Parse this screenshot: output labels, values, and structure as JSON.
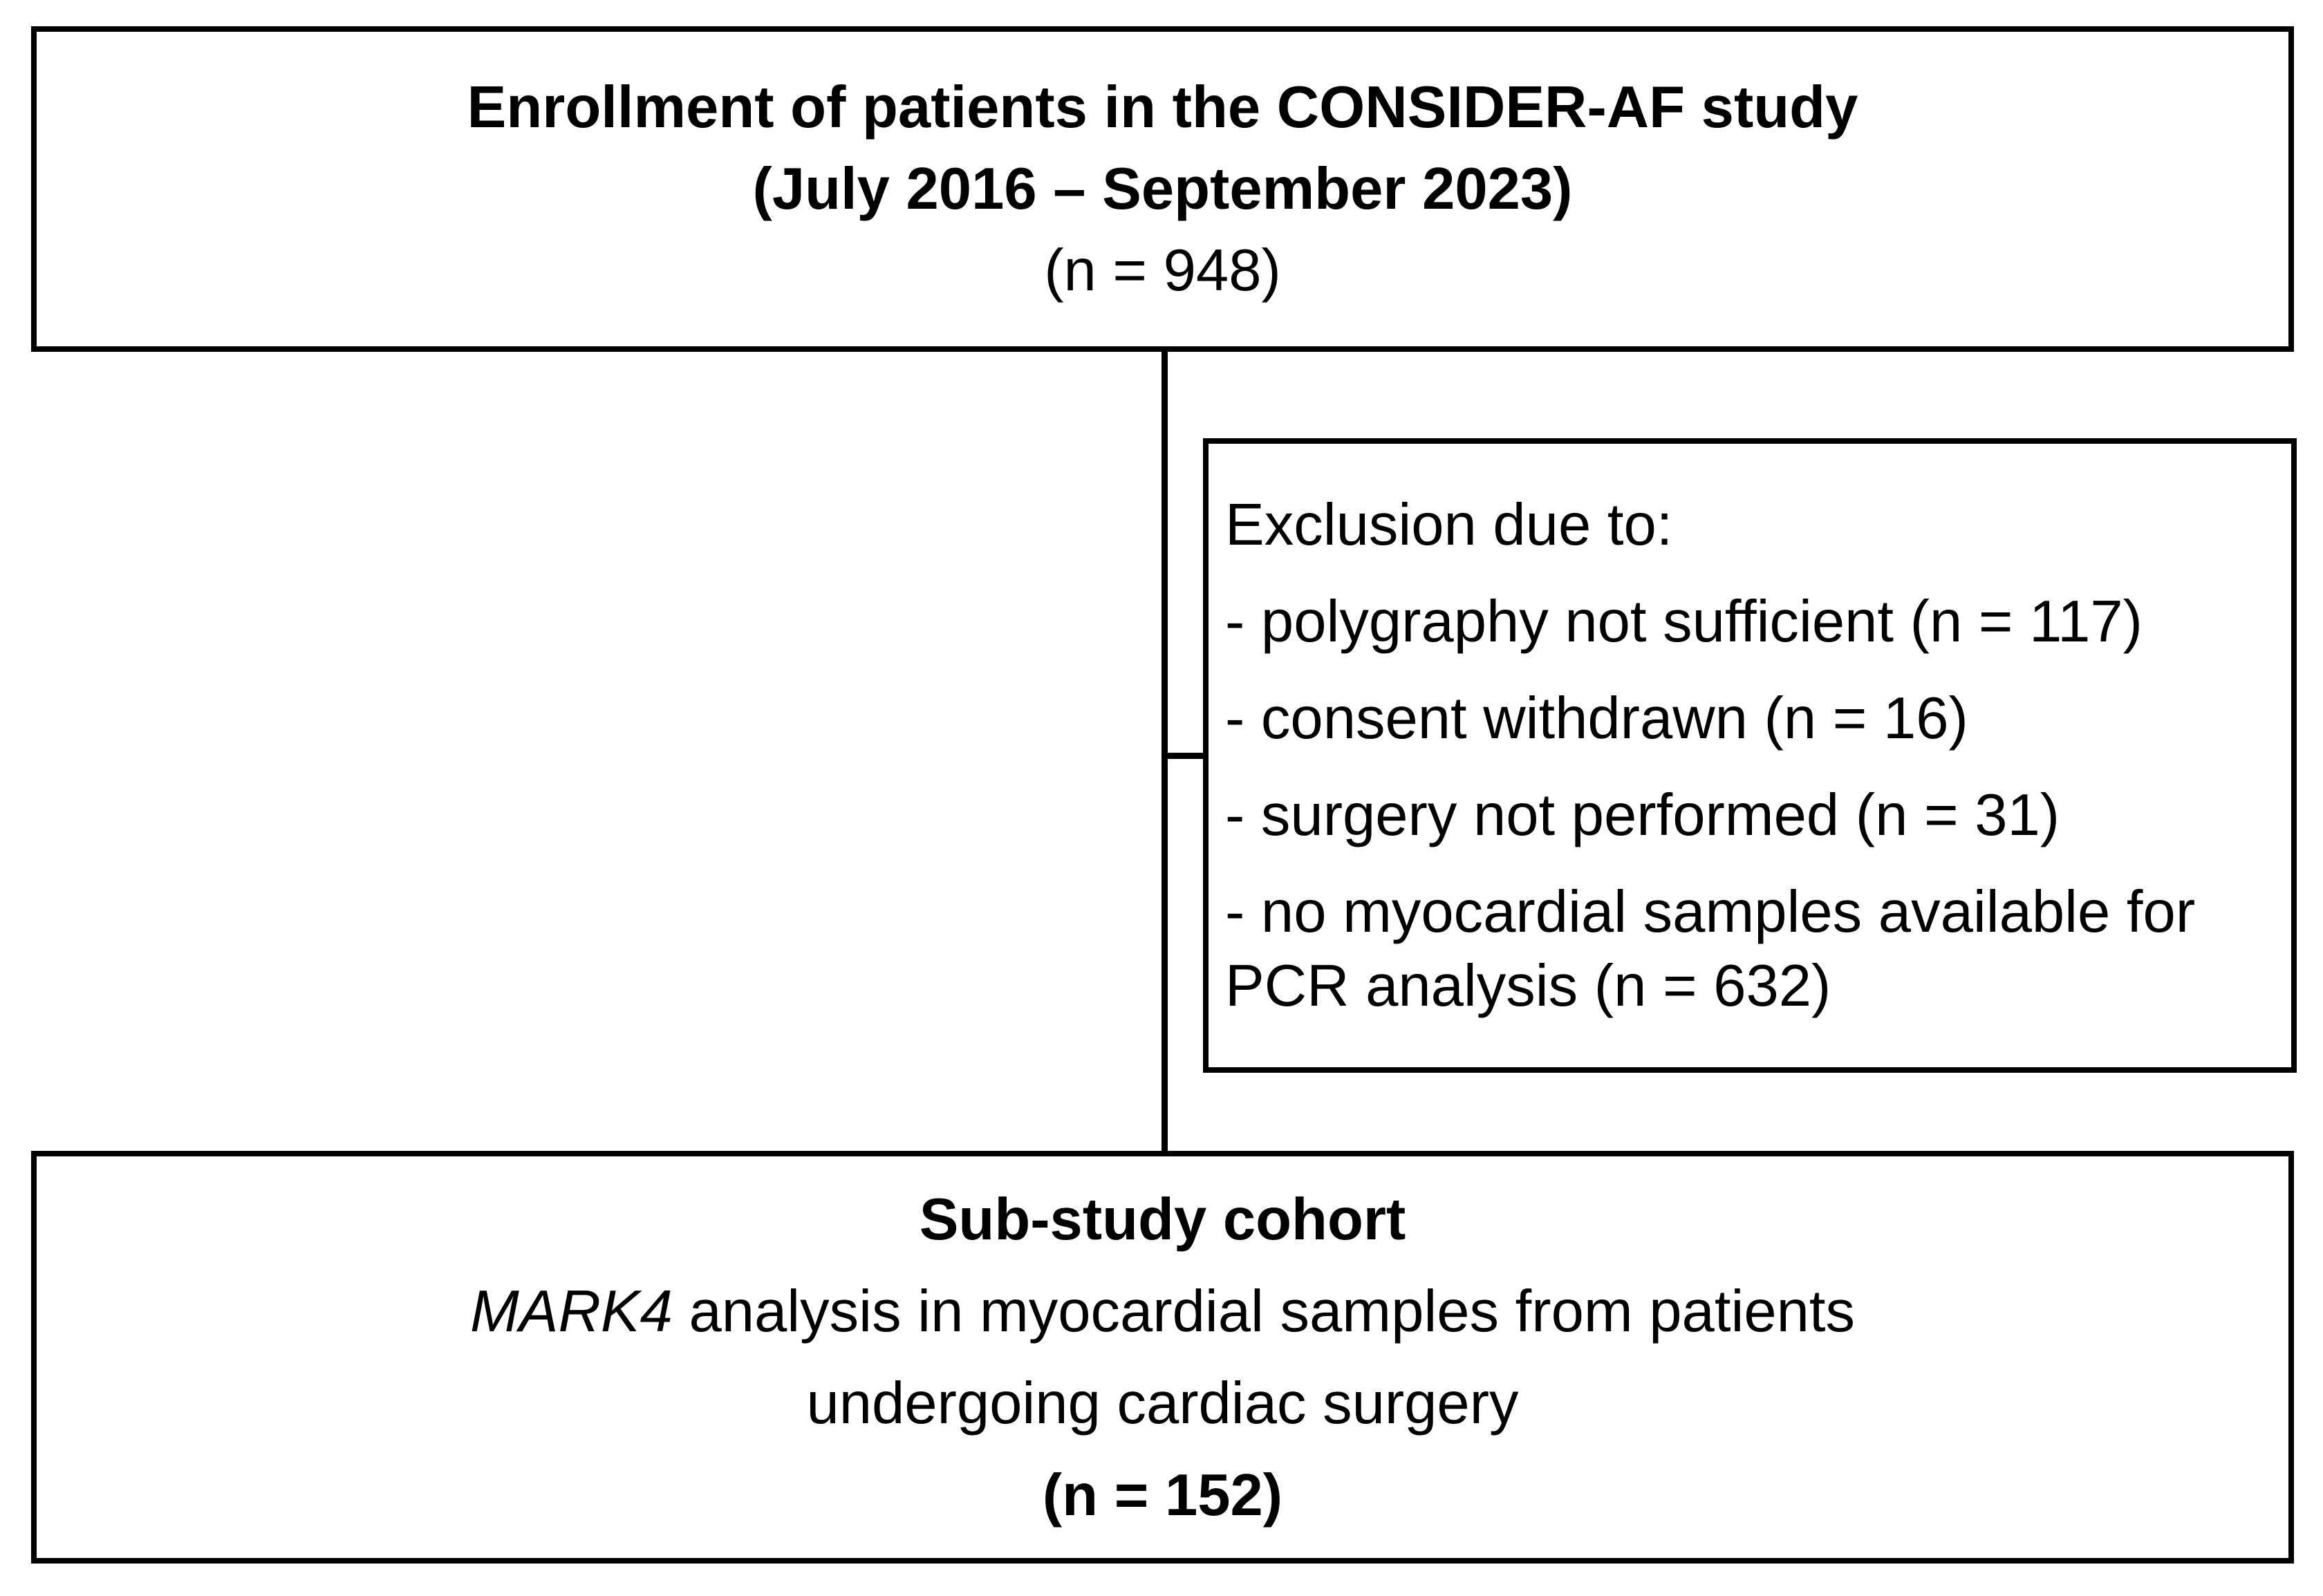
{
  "colors": {
    "border": "#000000",
    "background": "#ffffff",
    "text": "#000000"
  },
  "top_box": {
    "line1": "Enrollment of patients in the CONSIDER-AF study",
    "line2": "(July 2016 – September 2023)",
    "line3": "(n = 948)"
  },
  "exclusion_box": {
    "title": "Exclusion due to:",
    "items": [
      "- polygraphy not sufficient (n = 117)",
      "- consent withdrawn (n = 16)",
      "- surgery not performed (n = 31)",
      "- no myocardial samples available for PCR analysis (n = 632)"
    ]
  },
  "bottom_box": {
    "line1": "Sub-study cohort",
    "line2_italic": "MARK4",
    "line2_rest": " analysis in myocardial samples from patients",
    "line3": "undergoing cardiac surgery",
    "line4": "(n = 152)"
  }
}
